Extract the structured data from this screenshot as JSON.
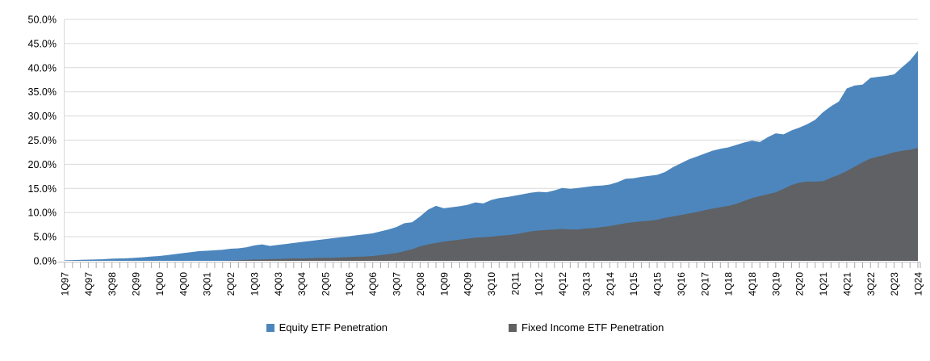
{
  "chart_data": {
    "type": "area",
    "title": "",
    "xlabel": "",
    "ylabel": "",
    "grid": "horizontal",
    "legend_position": "bottom",
    "x_label_every": 3,
    "x_categories": [
      "1Q97",
      "2Q97",
      "3Q97",
      "4Q97",
      "1Q98",
      "2Q98",
      "3Q98",
      "4Q98",
      "1Q99",
      "2Q99",
      "3Q99",
      "4Q99",
      "1Q00",
      "2Q00",
      "3Q00",
      "4Q00",
      "1Q01",
      "2Q01",
      "3Q01",
      "4Q01",
      "1Q02",
      "2Q02",
      "3Q02",
      "4Q02",
      "1Q03",
      "2Q03",
      "3Q03",
      "4Q03",
      "1Q04",
      "2Q04",
      "3Q04",
      "4Q04",
      "1Q05",
      "2Q05",
      "3Q05",
      "4Q05",
      "1Q06",
      "2Q06",
      "3Q06",
      "4Q06",
      "1Q07",
      "2Q07",
      "3Q07",
      "4Q07",
      "1Q08",
      "2Q08",
      "3Q08",
      "4Q08",
      "1Q09",
      "2Q09",
      "3Q09",
      "4Q09",
      "1Q10",
      "2Q10",
      "3Q10",
      "4Q10",
      "1Q11",
      "2Q11",
      "3Q11",
      "4Q11",
      "1Q12",
      "2Q12",
      "3Q12",
      "4Q12",
      "1Q13",
      "2Q13",
      "3Q13",
      "4Q13",
      "1Q14",
      "2Q14",
      "3Q14",
      "4Q14",
      "1Q15",
      "2Q15",
      "3Q15",
      "4Q15",
      "1Q16",
      "2Q16",
      "3Q16",
      "4Q16",
      "1Q17",
      "2Q17",
      "3Q17",
      "4Q17",
      "1Q18",
      "2Q18",
      "3Q18",
      "4Q18",
      "1Q19",
      "2Q19",
      "3Q19",
      "4Q19",
      "1Q20",
      "2Q20",
      "3Q20",
      "4Q20",
      "1Q21",
      "2Q21",
      "3Q21",
      "4Q21",
      "1Q22",
      "2Q22",
      "3Q22",
      "4Q22",
      "1Q23",
      "2Q23",
      "3Q23",
      "4Q23",
      "1Q24"
    ],
    "y_axis": {
      "min": 0,
      "max": 50,
      "step": 5,
      "tick_labels": [
        "0.0%",
        "5.0%",
        "10.0%",
        "15.0%",
        "20.0%",
        "25.0%",
        "30.0%",
        "35.0%",
        "40.0%",
        "45.0%",
        "50.0%"
      ]
    },
    "series": [
      {
        "name": "Equity ETF Penetration",
        "color": "#4D86BD",
        "values": [
          0.1,
          0.15,
          0.2,
          0.25,
          0.3,
          0.35,
          0.45,
          0.5,
          0.55,
          0.65,
          0.75,
          0.9,
          1.0,
          1.2,
          1.4,
          1.6,
          1.8,
          2.0,
          2.1,
          2.2,
          2.3,
          2.5,
          2.6,
          2.8,
          3.2,
          3.4,
          3.1,
          3.3,
          3.5,
          3.7,
          3.9,
          4.1,
          4.3,
          4.5,
          4.7,
          4.9,
          5.1,
          5.3,
          5.5,
          5.7,
          6.1,
          6.5,
          7.0,
          7.8,
          8.0,
          9.2,
          10.6,
          11.4,
          10.9,
          11.1,
          11.3,
          11.6,
          12.1,
          11.9,
          12.6,
          13.0,
          13.2,
          13.5,
          13.8,
          14.1,
          14.3,
          14.2,
          14.6,
          15.1,
          14.9,
          15.1,
          15.3,
          15.5,
          15.6,
          15.8,
          16.3,
          17.0,
          17.1,
          17.4,
          17.6,
          17.8,
          18.4,
          19.4,
          20.2,
          21.0,
          21.6,
          22.2,
          22.8,
          23.2,
          23.5,
          24.0,
          24.5,
          24.9,
          24.6,
          25.6,
          26.4,
          26.2,
          27.0,
          27.6,
          28.3,
          29.2,
          30.8,
          32.0,
          33.0,
          35.7,
          36.3,
          36.5,
          37.9,
          38.1,
          38.3,
          38.6,
          40.1,
          41.5,
          43.5
        ]
      },
      {
        "name": "Fixed Income ETF Penetration",
        "color": "#5F6164",
        "values": [
          0,
          0,
          0,
          0,
          0,
          0,
          0,
          0,
          0,
          0,
          0,
          0,
          0,
          0,
          0,
          0,
          0,
          0,
          0,
          0,
          0,
          0.05,
          0.1,
          0.2,
          0.3,
          0.3,
          0.35,
          0.4,
          0.45,
          0.5,
          0.5,
          0.55,
          0.6,
          0.65,
          0.65,
          0.7,
          0.8,
          0.85,
          0.9,
          1.0,
          1.2,
          1.4,
          1.6,
          2.0,
          2.4,
          3.0,
          3.4,
          3.7,
          4.0,
          4.2,
          4.4,
          4.6,
          4.8,
          4.9,
          5.0,
          5.2,
          5.3,
          5.5,
          5.8,
          6.1,
          6.3,
          6.4,
          6.5,
          6.6,
          6.5,
          6.5,
          6.7,
          6.8,
          7.0,
          7.2,
          7.5,
          7.8,
          8.0,
          8.2,
          8.3,
          8.5,
          8.9,
          9.2,
          9.5,
          9.8,
          10.1,
          10.5,
          10.8,
          11.1,
          11.4,
          11.8,
          12.4,
          13.0,
          13.4,
          13.8,
          14.2,
          14.9,
          15.7,
          16.2,
          16.4,
          16.4,
          16.5,
          17.2,
          17.8,
          18.6,
          19.5,
          20.4,
          21.2,
          21.6,
          22.0,
          22.5,
          22.8,
          23.0,
          23.4
        ]
      }
    ],
    "colors": {
      "gridline": "#D9D9D9",
      "axis": "#BFBFBF",
      "tick": "#ABABAB",
      "label_text": "#000000"
    }
  },
  "legend": {
    "equity_label": "Equity ETF Penetration",
    "fixed_income_label": "Fixed Income ETF Penetration"
  }
}
